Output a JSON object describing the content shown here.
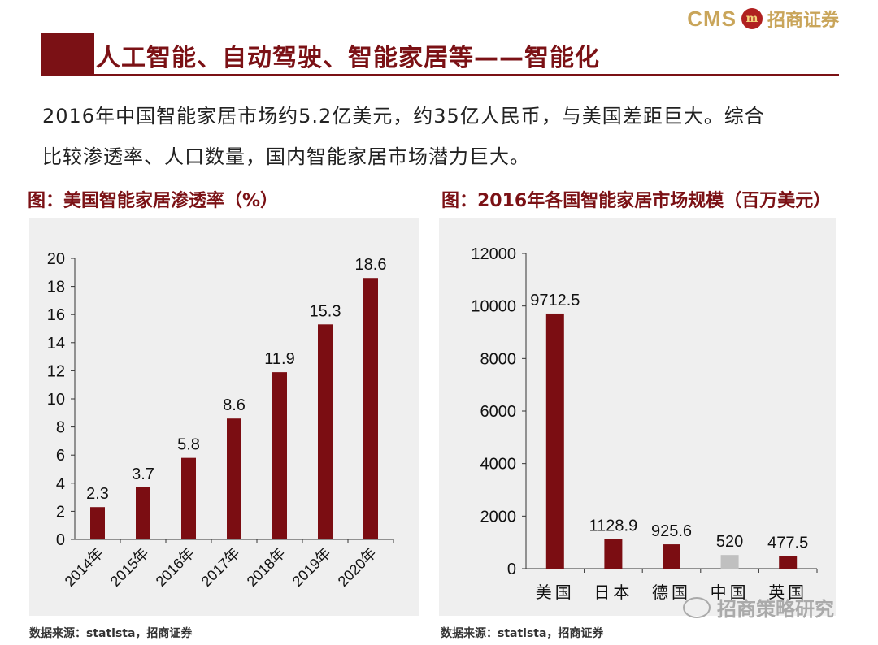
{
  "header": {
    "logo_cms": "CMS",
    "logo_mark": "m",
    "logo_cn": "招商证券",
    "title": "人工智能、自动驾驶、智能家居等——智能化"
  },
  "intro": {
    "line1": "2016年中国智能家居市场约5.2亿美元，约35亿人民币，与美国差距巨大。综合",
    "line2": "比较渗透率、人口数量，国内智能家居市场潜力巨大。"
  },
  "colors": {
    "bar": "#7b0d12",
    "bar_china": "#c0c0c0",
    "panel_bg": "#efefef",
    "accent": "#7b1115"
  },
  "chart_data": [
    {
      "type": "bar",
      "title": "图：美国智能家居渗透率（%）",
      "categories": [
        "2014年",
        "2015年",
        "2016年",
        "2017年",
        "2018年",
        "2019年",
        "2020年"
      ],
      "values": [
        2.3,
        3.7,
        5.8,
        8.6,
        11.9,
        15.3,
        18.6
      ],
      "value_labels": [
        "2.3",
        "3.7",
        "5.8",
        "8.6",
        "11.9",
        "15.3",
        "18.6"
      ],
      "yticks": [
        "0",
        "2",
        "4",
        "6",
        "8",
        "10",
        "12",
        "14",
        "16",
        "18",
        "20"
      ],
      "ylim": [
        0,
        20
      ],
      "grid": false,
      "legend": "none",
      "source": "数据来源：statista，招商证券"
    },
    {
      "type": "bar",
      "title": "图：2016年各国智能家居市场规模（百万美元）",
      "categories": [
        "美国",
        "日本",
        "德国",
        "中国",
        "英国"
      ],
      "values": [
        9712.5,
        1128.9,
        925.6,
        520,
        477.5
      ],
      "value_labels": [
        "9712.5",
        "1128.9",
        "925.6",
        "520",
        "477.5"
      ],
      "highlight": "中国",
      "yticks": [
        "0",
        "2000",
        "4000",
        "6000",
        "8000",
        "10000",
        "12000"
      ],
      "ylim": [
        0,
        12000
      ],
      "grid": false,
      "legend": "none",
      "source": "数据来源：statista，招商证券"
    }
  ],
  "watermark": {
    "text": "招商策略研究",
    "icon": "wechat-icon"
  }
}
